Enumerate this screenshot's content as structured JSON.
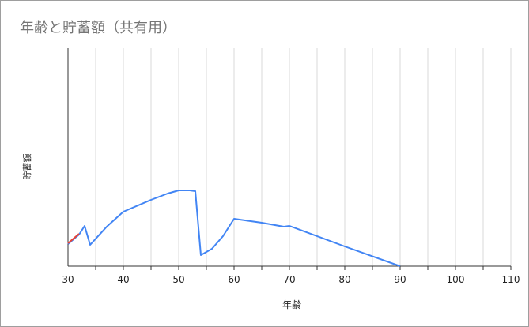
{
  "chart_data": {
    "type": "line",
    "title": "年齢と貯蓄額（共有用）",
    "xlabel": "年齢",
    "ylabel": "貯蓄額",
    "xlim": [
      30,
      110
    ],
    "x_ticks": [
      30,
      40,
      50,
      60,
      70,
      80,
      90,
      100,
      110
    ],
    "grid": true,
    "y_tick_labels_shown": false,
    "series": [
      {
        "color": "#4285f4",
        "x": [
          30,
          32,
          33,
          34,
          37,
          40,
          45,
          48,
          50,
          52,
          53,
          54,
          56,
          58,
          60,
          65,
          69,
          70,
          80,
          90
        ],
        "y": [
          28,
          40,
          51,
          27,
          50,
          69,
          84,
          92,
          96,
          96,
          95,
          14,
          22,
          38,
          60,
          55,
          50,
          51,
          25,
          0
        ]
      },
      {
        "color": "#ea4335",
        "x": [
          30,
          32
        ],
        "y": [
          29,
          41
        ]
      }
    ]
  }
}
